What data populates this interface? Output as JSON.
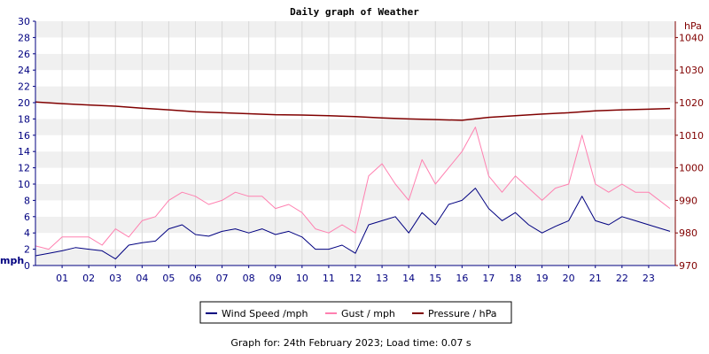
{
  "chart_data": {
    "type": "line",
    "title": "Daily graph of Weather",
    "left_axis": {
      "unit": "mph",
      "range": [
        0,
        30
      ],
      "ticks": [
        0,
        2,
        4,
        6,
        8,
        10,
        12,
        14,
        16,
        18,
        20,
        22,
        24,
        26,
        28,
        30
      ]
    },
    "right_axis": {
      "unit": "hPa",
      "range": [
        970,
        1045
      ],
      "ticks": [
        970,
        980,
        990,
        1000,
        1010,
        1020,
        1030,
        1040
      ]
    },
    "x_axis": {
      "range": [
        0,
        24
      ],
      "tick_labels": [
        "01",
        "02",
        "03",
        "04",
        "05",
        "06",
        "07",
        "08",
        "09",
        "10",
        "11",
        "12",
        "13",
        "14",
        "15",
        "16",
        "17",
        "18",
        "19",
        "20",
        "21",
        "22",
        "23"
      ]
    },
    "grid": true,
    "legend_position": "bottom",
    "series": [
      {
        "name": "Wind Speed /mph",
        "color": "#000080",
        "axis": "left",
        "x": [
          0,
          0.5,
          1,
          1.5,
          2,
          2.5,
          3,
          3.5,
          4,
          4.5,
          5,
          5.5,
          6,
          6.5,
          7,
          7.5,
          8,
          8.5,
          9,
          9.5,
          10,
          10.5,
          11,
          11.5,
          12,
          12.5,
          13,
          13.5,
          14,
          14.5,
          15,
          15.5,
          16,
          16.5,
          17,
          17.5,
          18,
          18.5,
          19,
          19.5,
          20,
          20.5,
          21,
          21.5,
          22,
          22.5,
          23,
          23.8
        ],
        "values": [
          1.2,
          1.5,
          1.8,
          2.2,
          2.0,
          1.8,
          0.8,
          2.5,
          2.8,
          3.0,
          4.5,
          5.0,
          3.8,
          3.6,
          4.2,
          4.5,
          4.0,
          4.5,
          3.8,
          4.2,
          3.5,
          2.0,
          2.0,
          2.5,
          1.5,
          5.0,
          5.5,
          6.0,
          4.0,
          6.5,
          5.0,
          7.5,
          8.0,
          9.5,
          7.0,
          5.5,
          6.5,
          5.0,
          4.0,
          4.8,
          5.5,
          8.5,
          5.5,
          5.0,
          6.0,
          5.5,
          5.0,
          4.2
        ]
      },
      {
        "name": "Gust / mph",
        "color": "#ff80b0",
        "axis": "left",
        "x": [
          0,
          0.5,
          1,
          1.5,
          2,
          2.5,
          3,
          3.5,
          4,
          4.5,
          5,
          5.5,
          6,
          6.5,
          7,
          7.5,
          8,
          8.5,
          9,
          9.5,
          10,
          10.5,
          11,
          11.5,
          12,
          12.5,
          13,
          13.5,
          14,
          14.5,
          15,
          15.5,
          16,
          16.5,
          17,
          17.5,
          18,
          18.5,
          19,
          19.5,
          20,
          20.5,
          21,
          21.5,
          22,
          22.5,
          23,
          23.8
        ],
        "values": [
          2.4,
          2.0,
          3.5,
          3.5,
          3.5,
          2.5,
          4.5,
          3.5,
          5.5,
          6.0,
          8.0,
          9.0,
          8.5,
          7.5,
          8.0,
          9.0,
          8.5,
          8.5,
          7.0,
          7.5,
          6.5,
          4.5,
          4.0,
          5.0,
          4.0,
          11.0,
          12.5,
          10.0,
          8.0,
          13.0,
          10.0,
          12.0,
          14.0,
          17.0,
          11.0,
          9.0,
          11.0,
          9.5,
          8.0,
          9.5,
          10.0,
          16.0,
          10.0,
          9.0,
          10.0,
          9.0,
          9.0,
          7.0
        ]
      },
      {
        "name": "Pressure / hPa",
        "color": "#800000",
        "axis": "right",
        "x": [
          0,
          1,
          2,
          3,
          4,
          5,
          6,
          7,
          8,
          9,
          10,
          11,
          12,
          13,
          14,
          15,
          16,
          17,
          18,
          19,
          20,
          21,
          22,
          23,
          23.8
        ],
        "values": [
          1020.2,
          1019.7,
          1019.3,
          1018.9,
          1018.3,
          1017.8,
          1017.2,
          1016.9,
          1016.6,
          1016.3,
          1016.2,
          1016.0,
          1015.7,
          1015.3,
          1015.0,
          1014.8,
          1014.6,
          1015.5,
          1016.0,
          1016.5,
          1016.9,
          1017.5,
          1017.8,
          1018.0,
          1018.2
        ]
      }
    ]
  },
  "footer": "Graph for: 24th February 2023; Load time: 0.07 s"
}
